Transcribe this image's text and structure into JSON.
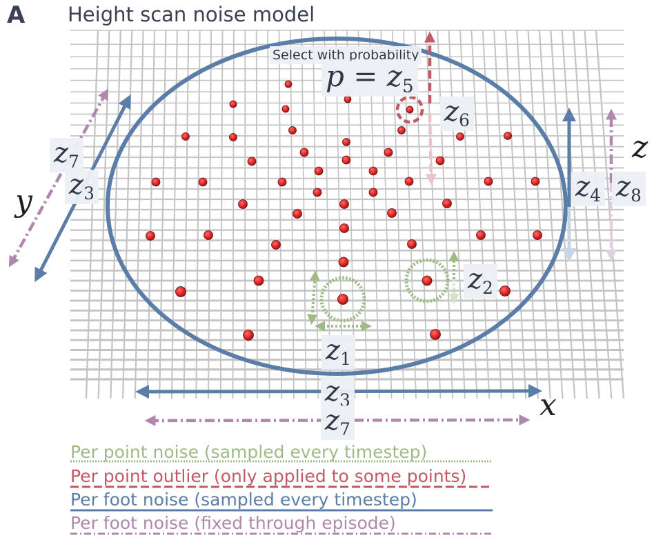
{
  "panel_letter": "A",
  "title": "Height scan noise model",
  "select_text": "Select with probability",
  "prob_eq": {
    "var": "p",
    "eq": " = ",
    "z": "z",
    "sub": "5"
  },
  "labels": {
    "z1": {
      "v": "z",
      "s": "1"
    },
    "z2": {
      "v": "z",
      "s": "2"
    },
    "z3_bottom": {
      "v": "z",
      "s": "3"
    },
    "z3_left": {
      "v": "z",
      "s": "3"
    },
    "z4": {
      "v": "z",
      "s": "4"
    },
    "z6": {
      "v": "z",
      "s": "6"
    },
    "z7_bottom": {
      "v": "z",
      "s": "7"
    },
    "z7_left": {
      "v": "z",
      "s": "7"
    },
    "z8": {
      "v": "z",
      "s": "8"
    }
  },
  "axes": {
    "x": "x",
    "y": "y",
    "z": "z"
  },
  "legend": [
    {
      "text": "Per point noise (sampled every timestep)",
      "color": "#9ebb85",
      "line": "dotted"
    },
    {
      "text": "Per point outlier (only applied to some points)",
      "color": "#c05a64",
      "line": "dashed"
    },
    {
      "text": "Per foot noise (sampled every timestep)",
      "color": "#5b7ea8",
      "line": "solid"
    },
    {
      "text": "Per foot noise (fixed through episode)",
      "color": "#b088ad",
      "line": "dashdot"
    }
  ],
  "colors": {
    "green": "#9ebb85",
    "red": "#c05a64",
    "blue": "#5b7ea8",
    "pink": "#b088ad",
    "point": "#e02a2a",
    "grid": "#c4c4c4"
  }
}
